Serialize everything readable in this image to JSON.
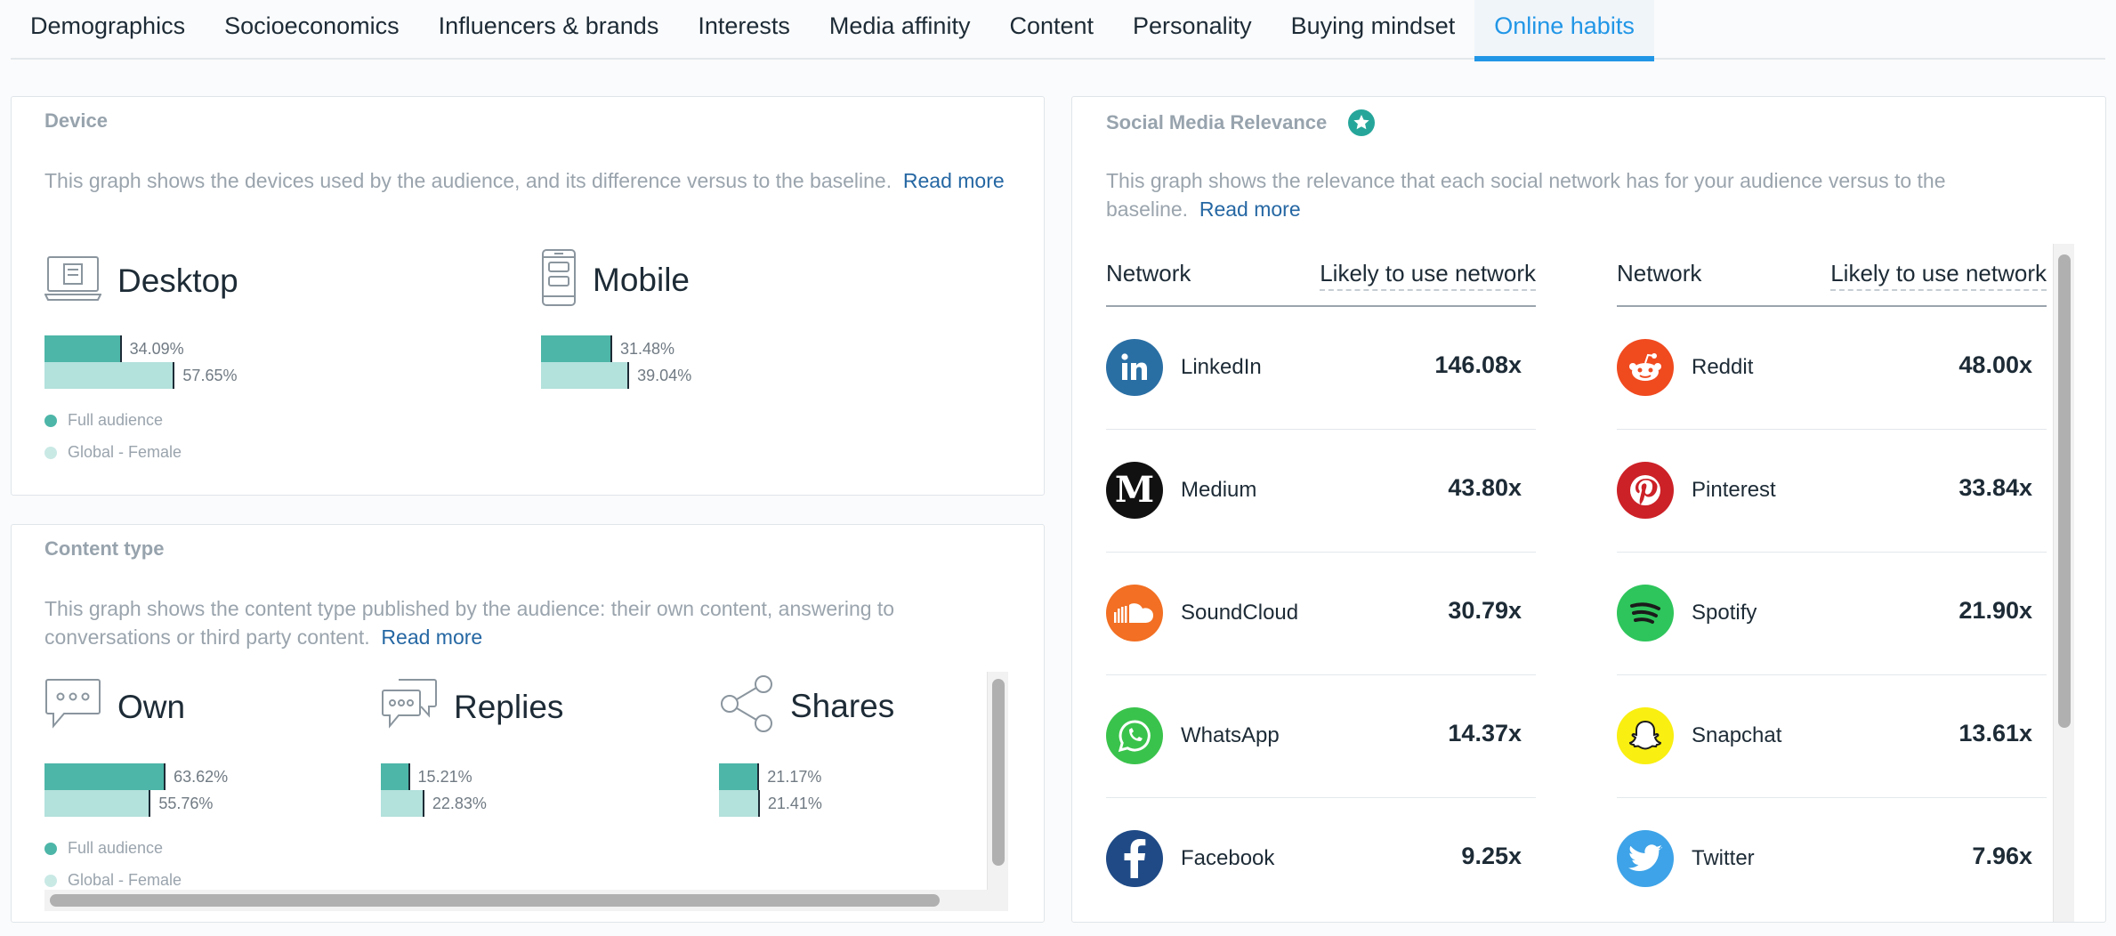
{
  "tabs": [
    {
      "label": "Demographics"
    },
    {
      "label": "Socioeconomics"
    },
    {
      "label": "Influencers & brands"
    },
    {
      "label": "Interests"
    },
    {
      "label": "Media affinity"
    },
    {
      "label": "Content"
    },
    {
      "label": "Personality"
    },
    {
      "label": "Buying mindset"
    },
    {
      "label": "Online habits"
    }
  ],
  "active_tab": "Online habits",
  "device": {
    "title": "Device",
    "description": "This graph shows the devices used by the audience, and its difference versus to the baseline.",
    "read_more": "Read more",
    "items": [
      {
        "label": "Desktop",
        "icon": "laptop-icon",
        "full": "34.09%",
        "global": "57.65%",
        "full_value": 34.09,
        "global_value": 57.65
      },
      {
        "label": "Mobile",
        "icon": "mobile-phone-icon",
        "full": "31.48%",
        "global": "39.04%",
        "full_value": 31.48,
        "global_value": 39.04
      }
    ],
    "legend": {
      "full": "Full audience",
      "global": "Global - Female"
    }
  },
  "content_type": {
    "title": "Content type",
    "description": "This graph shows the content type published by the audience: their own content, answering to conversations or third party content.",
    "read_more": "Read more",
    "items": [
      {
        "label": "Own",
        "icon": "speech-bubble-icon",
        "full": "63.62%",
        "global": "55.76%",
        "full_value": 63.62,
        "global_value": 55.76
      },
      {
        "label": "Replies",
        "icon": "conversation-icon",
        "full": "15.21%",
        "global": "22.83%",
        "full_value": 15.21,
        "global_value": 22.83
      },
      {
        "label": "Shares",
        "icon": "share-icon",
        "full": "21.17%",
        "global": "21.41%",
        "full_value": 21.17,
        "global_value": 21.41
      }
    ],
    "legend": {
      "full": "Full audience",
      "global": "Global - Female"
    }
  },
  "social": {
    "title": "Social Media Relevance",
    "description": "This graph shows the relevance that each social network has for your audience versus to the baseline.",
    "read_more": "Read more",
    "col_network": "Network",
    "col_likely": "Likely to use network",
    "left": [
      {
        "name": "LinkedIn",
        "value": "146.08x",
        "icon": "linkedin-icon",
        "color": "#2a6fa4"
      },
      {
        "name": "Medium",
        "value": "43.80x",
        "icon": "medium-icon",
        "color": "#111111"
      },
      {
        "name": "SoundCloud",
        "value": "30.79x",
        "icon": "soundcloud-icon",
        "color": "#f26f23"
      },
      {
        "name": "WhatsApp",
        "value": "14.37x",
        "icon": "whatsapp-icon",
        "color": "#3ac34c"
      },
      {
        "name": "Facebook",
        "value": "9.25x",
        "icon": "facebook-icon",
        "color": "#1f4a86"
      }
    ],
    "right": [
      {
        "name": "Reddit",
        "value": "48.00x",
        "icon": "reddit-icon",
        "color": "#f04a1f"
      },
      {
        "name": "Pinterest",
        "value": "33.84x",
        "icon": "pinterest-icon",
        "color": "#cc2127"
      },
      {
        "name": "Spotify",
        "value": "21.90x",
        "icon": "spotify-icon",
        "color": "#2ec55c"
      },
      {
        "name": "Snapchat",
        "value": "13.61x",
        "icon": "snapchat-icon",
        "color": "#f9ef11"
      },
      {
        "name": "Twitter",
        "value": "7.96x",
        "icon": "twitter-icon",
        "color": "#3ea3e8"
      }
    ]
  },
  "colors": {
    "accent": "#2196e6",
    "full_bar": "#4db6a8",
    "global_bar": "#b3e1dc",
    "link": "#2567a3"
  }
}
